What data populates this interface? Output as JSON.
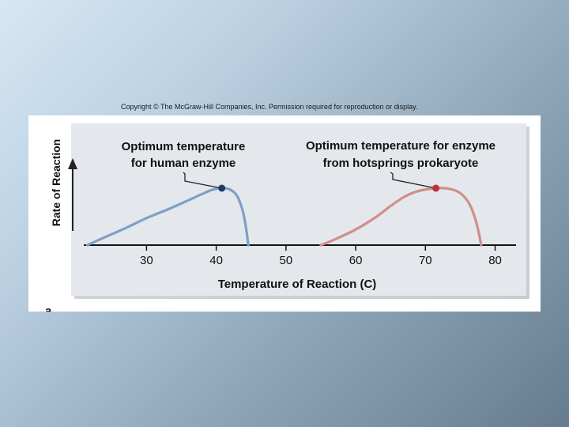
{
  "copyright": "Copyright © The McGraw-Hill Companies, Inc. Permission required for reproduction or display.",
  "panel_label": "a.",
  "colors": {
    "human_curve": "#7ea0c4",
    "human_dot": "#1d3f66",
    "prokaryote_curve": "#cf8f8a",
    "prokaryote_dot": "#b8323a",
    "plot_bg": "#e4e7ec"
  },
  "chart_data": {
    "type": "line",
    "xlabel": "Temperature of Reaction (C)",
    "ylabel": "Rate of Reaction",
    "x_ticks": [
      30,
      40,
      50,
      60,
      70,
      80
    ],
    "xlim": [
      21,
      83
    ],
    "ylim": [
      0,
      1
    ],
    "grid": false,
    "series": [
      {
        "key": "human",
        "points": [
          [
            21.5,
            0.0
          ],
          [
            24,
            0.11
          ],
          [
            27,
            0.24
          ],
          [
            30,
            0.38
          ],
          [
            33,
            0.5
          ],
          [
            36,
            0.63
          ],
          [
            38,
            0.72
          ],
          [
            39.5,
            0.78
          ],
          [
            40.8,
            0.8
          ],
          [
            42,
            0.78
          ],
          [
            43,
            0.69
          ],
          [
            43.8,
            0.48
          ],
          [
            44.3,
            0.22
          ],
          [
            44.6,
            0.0
          ]
        ],
        "optimum": [
          40.8,
          0.8
        ]
      },
      {
        "key": "prokaryote",
        "points": [
          [
            55,
            0.0
          ],
          [
            57,
            0.08
          ],
          [
            60,
            0.22
          ],
          [
            63,
            0.4
          ],
          [
            65,
            0.55
          ],
          [
            67,
            0.68
          ],
          [
            69,
            0.76
          ],
          [
            71.5,
            0.8
          ],
          [
            73.5,
            0.79
          ],
          [
            75,
            0.73
          ],
          [
            76.3,
            0.58
          ],
          [
            77.3,
            0.32
          ],
          [
            78,
            0.0
          ]
        ],
        "optimum": [
          71.5,
          0.8
        ]
      }
    ],
    "annotations": [
      {
        "series": "human",
        "lines": [
          "Optimum temperature",
          "for human enzyme"
        ]
      },
      {
        "series": "prokaryote",
        "lines": [
          "Optimum temperature for enzyme",
          "from hotsprings prokaryote"
        ]
      }
    ]
  }
}
